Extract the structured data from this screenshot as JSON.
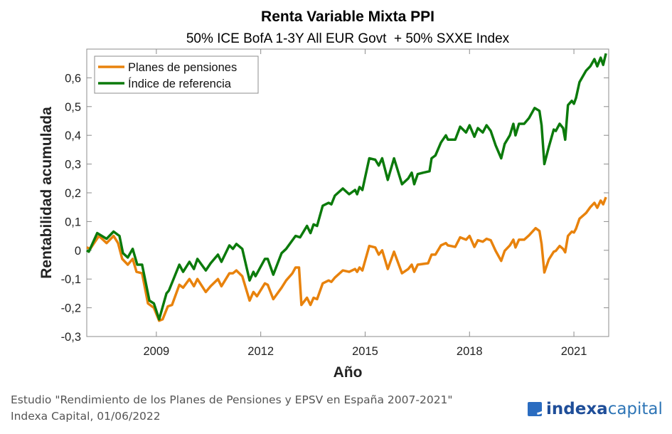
{
  "chart_data": {
    "type": "line",
    "title": "Renta Variable Mixta PPI",
    "subtitle": "50% ICE BofA 1-3Y All EUR Govt  + 50% SXXE Index",
    "xlabel": "Año",
    "ylabel": "Rentabilidad acumulada",
    "xlim": [
      2007,
      2022
    ],
    "ylim": [
      -0.3,
      0.7
    ],
    "xticks": [
      2009,
      2012,
      2015,
      2018,
      2021
    ],
    "xtick_labels": [
      "2009",
      "2012",
      "2015",
      "2018",
      "2021"
    ],
    "yticks": [
      -0.3,
      -0.2,
      -0.1,
      0,
      0.1,
      0.2,
      0.3,
      0.4,
      0.5,
      0.6
    ],
    "ytick_labels": [
      "-0,3",
      "-0,2",
      "-0,1",
      "0",
      "0,1",
      "0,2",
      "0,3",
      "0,4",
      "0,5",
      "0,6"
    ],
    "grid": false,
    "legend_position": "top-left",
    "series": [
      {
        "name": "Planes de pensiones",
        "color": "#E8820C",
        "points": [
          [
            2007.0,
            0.01
          ],
          [
            2007.1,
            0.005
          ],
          [
            2007.35,
            0.05
          ],
          [
            2007.57,
            0.025
          ],
          [
            2007.77,
            0.05
          ],
          [
            2007.9,
            0.025
          ],
          [
            2008.02,
            -0.03
          ],
          [
            2008.18,
            -0.05
          ],
          [
            2008.32,
            -0.03
          ],
          [
            2008.43,
            -0.075
          ],
          [
            2008.59,
            -0.08
          ],
          [
            2008.76,
            -0.185
          ],
          [
            2008.93,
            -0.2
          ],
          [
            2009.08,
            -0.245
          ],
          [
            2009.18,
            -0.24
          ],
          [
            2009.33,
            -0.195
          ],
          [
            2009.45,
            -0.19
          ],
          [
            2009.66,
            -0.12
          ],
          [
            2009.77,
            -0.13
          ],
          [
            2009.95,
            -0.1
          ],
          [
            2010.08,
            -0.125
          ],
          [
            2010.18,
            -0.1
          ],
          [
            2010.42,
            -0.145
          ],
          [
            2010.56,
            -0.125
          ],
          [
            2010.77,
            -0.1
          ],
          [
            2010.87,
            -0.125
          ],
          [
            2011.1,
            -0.08
          ],
          [
            2011.2,
            -0.08
          ],
          [
            2011.3,
            -0.07
          ],
          [
            2011.47,
            -0.09
          ],
          [
            2011.68,
            -0.175
          ],
          [
            2011.79,
            -0.145
          ],
          [
            2011.89,
            -0.16
          ],
          [
            2012.12,
            -0.115
          ],
          [
            2012.2,
            -0.12
          ],
          [
            2012.36,
            -0.17
          ],
          [
            2012.6,
            -0.13
          ],
          [
            2012.73,
            -0.105
          ],
          [
            2012.91,
            -0.08
          ],
          [
            2013.0,
            -0.06
          ],
          [
            2013.1,
            -0.06
          ],
          [
            2013.17,
            -0.19
          ],
          [
            2013.33,
            -0.165
          ],
          [
            2013.43,
            -0.19
          ],
          [
            2013.52,
            -0.165
          ],
          [
            2013.62,
            -0.17
          ],
          [
            2013.78,
            -0.115
          ],
          [
            2013.95,
            -0.105
          ],
          [
            2014.03,
            -0.11
          ],
          [
            2014.13,
            -0.095
          ],
          [
            2014.36,
            -0.07
          ],
          [
            2014.54,
            -0.075
          ],
          [
            2014.71,
            -0.065
          ],
          [
            2014.77,
            -0.075
          ],
          [
            2014.84,
            -0.06
          ],
          [
            2014.92,
            -0.07
          ],
          [
            2015.12,
            0.015
          ],
          [
            2015.29,
            0.01
          ],
          [
            2015.39,
            -0.015
          ],
          [
            2015.49,
            0.0
          ],
          [
            2015.65,
            -0.065
          ],
          [
            2015.83,
            -0.005
          ],
          [
            2016.06,
            -0.08
          ],
          [
            2016.24,
            -0.065
          ],
          [
            2016.34,
            -0.05
          ],
          [
            2016.41,
            -0.075
          ],
          [
            2016.51,
            -0.05
          ],
          [
            2016.81,
            -0.045
          ],
          [
            2016.91,
            -0.015
          ],
          [
            2017.02,
            -0.015
          ],
          [
            2017.18,
            0.017
          ],
          [
            2017.32,
            0.025
          ],
          [
            2017.38,
            0.017
          ],
          [
            2017.59,
            0.012
          ],
          [
            2017.73,
            0.045
          ],
          [
            2017.9,
            0.037
          ],
          [
            2018.0,
            0.05
          ],
          [
            2018.14,
            0.012
          ],
          [
            2018.24,
            0.035
          ],
          [
            2018.38,
            0.03
          ],
          [
            2018.49,
            0.04
          ],
          [
            2018.61,
            0.035
          ],
          [
            2018.75,
            -0.002
          ],
          [
            2018.91,
            -0.037
          ],
          [
            2019.01,
            -0.002
          ],
          [
            2019.16,
            0.017
          ],
          [
            2019.26,
            0.037
          ],
          [
            2019.32,
            0.01
          ],
          [
            2019.42,
            0.037
          ],
          [
            2019.57,
            0.037
          ],
          [
            2019.71,
            0.052
          ],
          [
            2019.9,
            0.077
          ],
          [
            2020.01,
            0.067
          ],
          [
            2020.07,
            0.022
          ],
          [
            2020.15,
            -0.077
          ],
          [
            2020.28,
            -0.032
          ],
          [
            2020.42,
            -0.005
          ],
          [
            2020.48,
            -0.002
          ],
          [
            2020.59,
            0.015
          ],
          [
            2020.69,
            0.005
          ],
          [
            2020.75,
            -0.007
          ],
          [
            2020.83,
            0.05
          ],
          [
            2020.94,
            0.065
          ],
          [
            2021.0,
            0.062
          ],
          [
            2021.06,
            0.075
          ],
          [
            2021.16,
            0.11
          ],
          [
            2021.35,
            0.13
          ],
          [
            2021.47,
            0.15
          ],
          [
            2021.59,
            0.165
          ],
          [
            2021.67,
            0.148
          ],
          [
            2021.77,
            0.173
          ],
          [
            2021.84,
            0.16
          ],
          [
            2021.92,
            0.185
          ]
        ]
      },
      {
        "name": "Índice de referencia",
        "color": "#0B7A0B",
        "points": [
          [
            2007.0,
            0.0
          ],
          [
            2007.06,
            -0.005
          ],
          [
            2007.3,
            0.06
          ],
          [
            2007.57,
            0.04
          ],
          [
            2007.77,
            0.065
          ],
          [
            2007.94,
            0.05
          ],
          [
            2008.04,
            -0.01
          ],
          [
            2008.18,
            -0.025
          ],
          [
            2008.32,
            0.005
          ],
          [
            2008.45,
            -0.05
          ],
          [
            2008.59,
            -0.05
          ],
          [
            2008.8,
            -0.175
          ],
          [
            2008.93,
            -0.185
          ],
          [
            2009.08,
            -0.24
          ],
          [
            2009.29,
            -0.15
          ],
          [
            2009.36,
            -0.14
          ],
          [
            2009.66,
            -0.05
          ],
          [
            2009.77,
            -0.075
          ],
          [
            2009.95,
            -0.04
          ],
          [
            2010.08,
            -0.065
          ],
          [
            2010.18,
            -0.03
          ],
          [
            2010.42,
            -0.07
          ],
          [
            2010.56,
            -0.045
          ],
          [
            2010.77,
            -0.015
          ],
          [
            2010.87,
            -0.04
          ],
          [
            2011.1,
            0.017
          ],
          [
            2011.2,
            0.005
          ],
          [
            2011.3,
            0.022
          ],
          [
            2011.47,
            0.005
          ],
          [
            2011.68,
            -0.105
          ],
          [
            2011.79,
            -0.075
          ],
          [
            2011.85,
            -0.09
          ],
          [
            2012.12,
            -0.03
          ],
          [
            2012.2,
            -0.03
          ],
          [
            2012.36,
            -0.085
          ],
          [
            2012.6,
            -0.01
          ],
          [
            2012.73,
            0.005
          ],
          [
            2013.0,
            0.05
          ],
          [
            2013.13,
            0.045
          ],
          [
            2013.33,
            0.085
          ],
          [
            2013.43,
            0.06
          ],
          [
            2013.52,
            0.09
          ],
          [
            2013.62,
            0.085
          ],
          [
            2013.78,
            0.155
          ],
          [
            2013.95,
            0.165
          ],
          [
            2014.03,
            0.16
          ],
          [
            2014.13,
            0.19
          ],
          [
            2014.36,
            0.215
          ],
          [
            2014.54,
            0.195
          ],
          [
            2014.71,
            0.21
          ],
          [
            2014.77,
            0.195
          ],
          [
            2014.84,
            0.22
          ],
          [
            2014.92,
            0.21
          ],
          [
            2015.12,
            0.32
          ],
          [
            2015.29,
            0.315
          ],
          [
            2015.39,
            0.295
          ],
          [
            2015.49,
            0.32
          ],
          [
            2015.65,
            0.245
          ],
          [
            2015.83,
            0.32
          ],
          [
            2016.06,
            0.23
          ],
          [
            2016.24,
            0.25
          ],
          [
            2016.34,
            0.27
          ],
          [
            2016.41,
            0.23
          ],
          [
            2016.51,
            0.265
          ],
          [
            2016.67,
            0.27
          ],
          [
            2016.85,
            0.275
          ],
          [
            2016.91,
            0.32
          ],
          [
            2017.02,
            0.33
          ],
          [
            2017.18,
            0.375
          ],
          [
            2017.32,
            0.4
          ],
          [
            2017.38,
            0.385
          ],
          [
            2017.59,
            0.385
          ],
          [
            2017.73,
            0.43
          ],
          [
            2017.9,
            0.41
          ],
          [
            2018.0,
            0.435
          ],
          [
            2018.14,
            0.395
          ],
          [
            2018.24,
            0.425
          ],
          [
            2018.38,
            0.41
          ],
          [
            2018.49,
            0.435
          ],
          [
            2018.61,
            0.415
          ],
          [
            2018.75,
            0.365
          ],
          [
            2018.91,
            0.32
          ],
          [
            2019.01,
            0.37
          ],
          [
            2019.16,
            0.4
          ],
          [
            2019.26,
            0.44
          ],
          [
            2019.32,
            0.4
          ],
          [
            2019.42,
            0.44
          ],
          [
            2019.57,
            0.44
          ],
          [
            2019.71,
            0.46
          ],
          [
            2019.87,
            0.495
          ],
          [
            2020.01,
            0.485
          ],
          [
            2020.07,
            0.435
          ],
          [
            2020.15,
            0.3
          ],
          [
            2020.28,
            0.36
          ],
          [
            2020.42,
            0.42
          ],
          [
            2020.48,
            0.415
          ],
          [
            2020.59,
            0.44
          ],
          [
            2020.69,
            0.425
          ],
          [
            2020.75,
            0.385
          ],
          [
            2020.83,
            0.505
          ],
          [
            2020.94,
            0.52
          ],
          [
            2021.0,
            0.51
          ],
          [
            2021.06,
            0.53
          ],
          [
            2021.16,
            0.585
          ],
          [
            2021.35,
            0.625
          ],
          [
            2021.47,
            0.64
          ],
          [
            2021.59,
            0.665
          ],
          [
            2021.67,
            0.64
          ],
          [
            2021.77,
            0.67
          ],
          [
            2021.84,
            0.645
          ],
          [
            2021.92,
            0.685
          ]
        ]
      }
    ]
  },
  "footer": {
    "line1": "Estudio \"Rendimiento de los Planes de Pensiones y EPSV en España 2007-2021\"",
    "line2": "Indexa Capital, 01/06/2022"
  },
  "logo": {
    "part1": "indexa",
    "part2": "capital",
    "color": "#1F4E99"
  }
}
